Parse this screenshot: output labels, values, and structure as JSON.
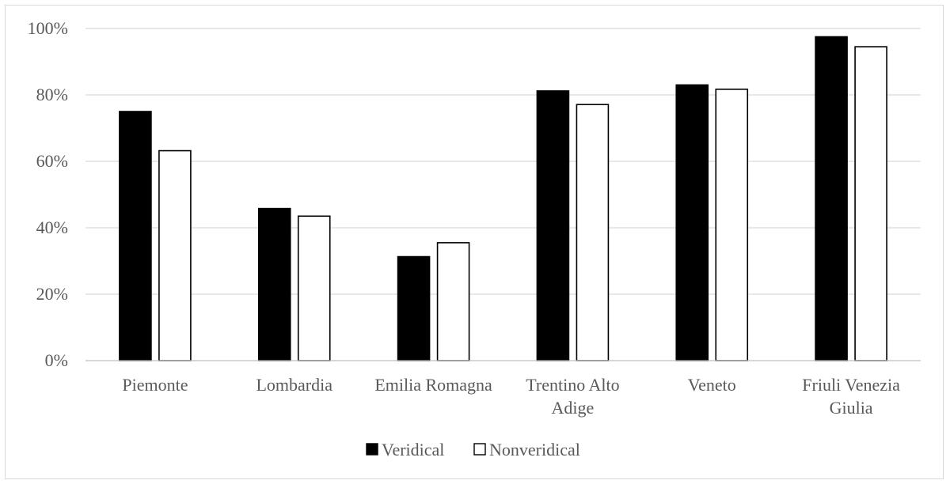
{
  "chart_data": {
    "type": "bar",
    "categories": [
      [
        "Piemonte"
      ],
      [
        "Lombardia"
      ],
      [
        "Emilia Romagna"
      ],
      [
        "Trentino Alto",
        "Adige"
      ],
      [
        "Veneto"
      ],
      [
        "Friuli Venezia",
        "Giulia"
      ]
    ],
    "series": [
      {
        "name": "Veridical",
        "color": "#000000",
        "values": [
          0.75,
          0.458,
          0.313,
          0.812,
          0.83,
          0.975
        ]
      },
      {
        "name": "Nonveridical",
        "color": "#ffffff",
        "values": [
          0.632,
          0.435,
          0.355,
          0.771,
          0.817,
          0.945
        ]
      }
    ],
    "ylim": [
      0,
      1
    ],
    "yticks": [
      {
        "value": 0,
        "label": "0%"
      },
      {
        "value": 0.2,
        "label": "20%"
      },
      {
        "value": 0.4,
        "label": "40%"
      },
      {
        "value": 0.6,
        "label": "60%"
      },
      {
        "value": 0.8,
        "label": "80%"
      },
      {
        "value": 1,
        "label": "100%"
      }
    ],
    "grid": true,
    "legend": "bottom-center"
  }
}
